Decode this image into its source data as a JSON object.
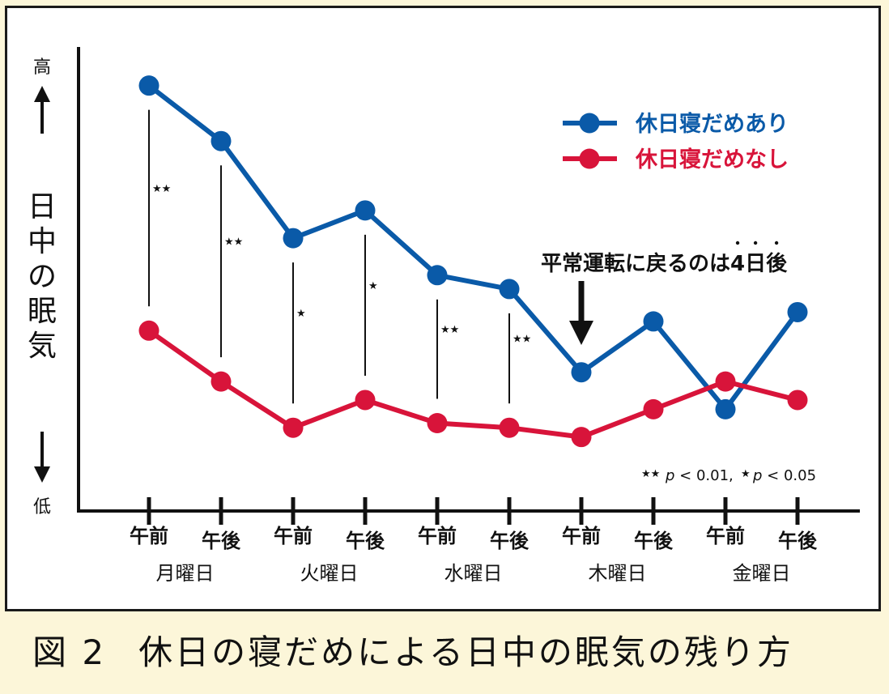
{
  "chart_data": {
    "type": "line",
    "ylabel": "日中の眠気",
    "y_high_label": "高",
    "y_low_label": "低",
    "ylim": [
      0,
      100
    ],
    "categories": [
      {
        "time": "午前",
        "day": "月曜日"
      },
      {
        "time": "午後",
        "day": "月曜日"
      },
      {
        "time": "午前",
        "day": "火曜日"
      },
      {
        "time": "午後",
        "day": "火曜日"
      },
      {
        "time": "午前",
        "day": "水曜日"
      },
      {
        "time": "午後",
        "day": "水曜日"
      },
      {
        "time": "午前",
        "day": "木曜日"
      },
      {
        "time": "午後",
        "day": "木曜日"
      },
      {
        "time": "午前",
        "day": "金曜日"
      },
      {
        "time": "午後",
        "day": "金曜日"
      }
    ],
    "days": [
      "月曜日",
      "火曜日",
      "水曜日",
      "木曜日",
      "金曜日"
    ],
    "series": [
      {
        "name": "休日寝だめあり",
        "color": "#0a5aa8",
        "values": [
          92,
          80,
          59,
          65,
          51,
          48,
          30,
          41,
          22,
          43
        ]
      },
      {
        "name": "休日寝だめなし",
        "color": "#d8143a",
        "values": [
          39,
          28,
          18,
          24,
          19,
          18,
          16,
          22,
          28,
          24
        ]
      }
    ],
    "significance": [
      {
        "index": 0,
        "mark": "★★"
      },
      {
        "index": 1,
        "mark": "★★"
      },
      {
        "index": 2,
        "mark": "★"
      },
      {
        "index": 3,
        "mark": "★"
      },
      {
        "index": 4,
        "mark": "★★"
      },
      {
        "index": 5,
        "mark": "★★"
      }
    ],
    "annotation": {
      "text": "平常運転に戻るのは4日後",
      "index": 6,
      "emphasis": "4日後"
    },
    "significance_note": {
      "double_mark": "★★",
      "double_text": "p < 0.01,",
      "single_mark": "★",
      "single_text": "p < 0.05"
    },
    "legend_position": "top-right",
    "grid": false
  },
  "caption": {
    "figure_no": "図 2",
    "title": "休日の寝だめによる日中の眠気の残り方"
  }
}
